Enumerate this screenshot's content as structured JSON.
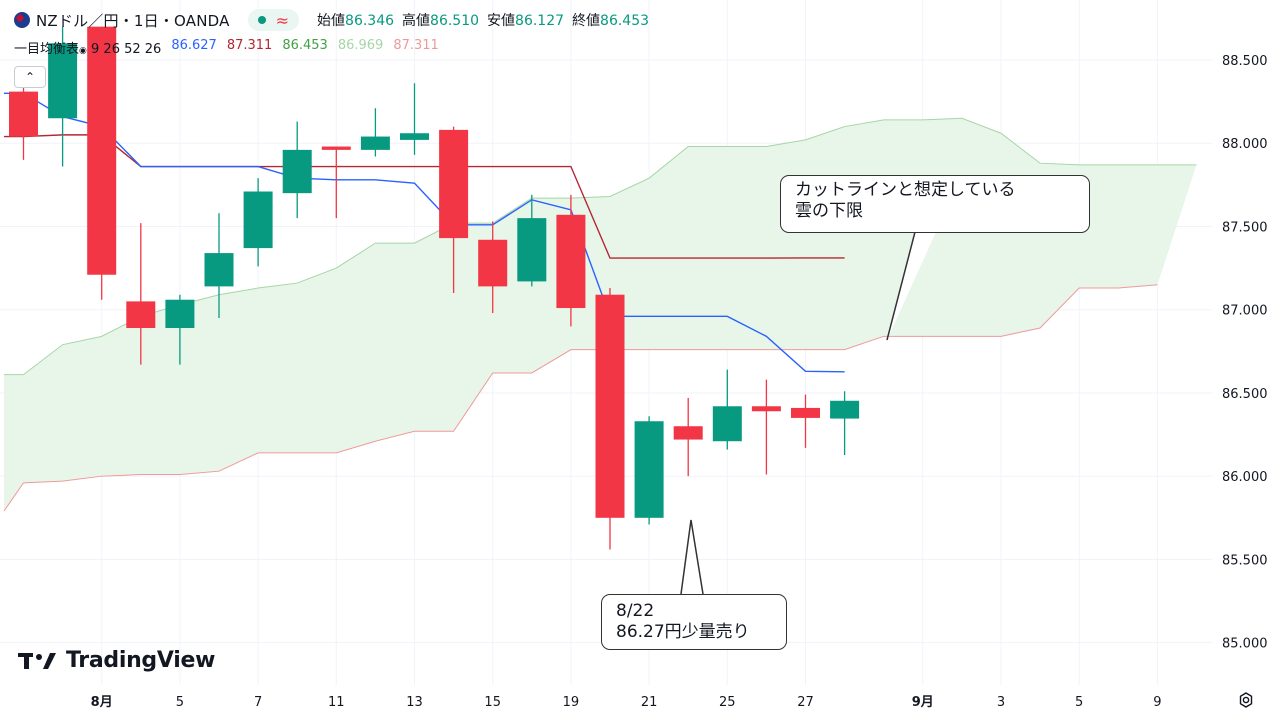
{
  "header": {
    "symbol": "NZドル／円・1日・OANDA",
    "open_label": "始値",
    "open_value": "86.346",
    "high_label": "高値",
    "high_value": "86.510",
    "low_label": "安値",
    "low_value": "86.127",
    "close_label": "終値",
    "close_value": "86.453",
    "wave_glyph": "≈"
  },
  "indicator": {
    "name": "一目均衡表",
    "params": "9 26 52 26",
    "values": [
      {
        "text": "86.627",
        "color": "#2962ff"
      },
      {
        "text": "87.311",
        "color": "#b22833"
      },
      {
        "text": "86.453",
        "color": "#43a047"
      },
      {
        "text": "86.969",
        "color": "#a5d6a7"
      },
      {
        "text": "87.311",
        "color": "#ef9a9a"
      }
    ]
  },
  "collapse_glyph": "⌃",
  "logo_text": "TradingView",
  "callouts": {
    "cloud": "カットラインと想定している\n雲の下限",
    "trade": "8/22\n86.27円少量売り"
  },
  "colors": {
    "up": "#089981",
    "down": "#f23645",
    "tenkan": "#2962ff",
    "kijun": "#b22833",
    "span_a": "#a5d6a7",
    "span_b": "#ef9a9a",
    "cloud": "#e8f5e9"
  },
  "chart_data": {
    "type": "candlestick",
    "ylim": [
      84.95,
      88.68
    ],
    "y_ticks": [
      85.0,
      85.5,
      86.0,
      86.5,
      87.0,
      87.5,
      88.0,
      88.5
    ],
    "y_tick_labels": [
      "85.000",
      "85.500",
      "86.000",
      "86.500",
      "87.000",
      "87.500",
      "88.000",
      "88.500"
    ],
    "x_ticks": [
      {
        "label": "8月",
        "slot": 2,
        "bold": true
      },
      {
        "label": "5",
        "slot": 4
      },
      {
        "label": "7",
        "slot": 6
      },
      {
        "label": "11",
        "slot": 8
      },
      {
        "label": "13",
        "slot": 10
      },
      {
        "label": "15",
        "slot": 12
      },
      {
        "label": "19",
        "slot": 14
      },
      {
        "label": "21",
        "slot": 16
      },
      {
        "label": "25",
        "slot": 18
      },
      {
        "label": "27",
        "slot": 20
      },
      {
        "label": "9月",
        "slot": 23,
        "bold": true
      },
      {
        "label": "3",
        "slot": 25
      },
      {
        "label": "5",
        "slot": 27
      },
      {
        "label": "9",
        "slot": 29
      }
    ],
    "candles": [
      {
        "slot": 0,
        "o": 88.31,
        "h": 88.45,
        "l": 87.9,
        "c": 88.04
      },
      {
        "slot": 1,
        "o": 88.15,
        "h": 88.7,
        "l": 87.86,
        "c": 88.6
      },
      {
        "slot": 2,
        "o": 88.7,
        "h": 88.7,
        "l": 87.06,
        "c": 87.21
      },
      {
        "slot": 3,
        "o": 87.05,
        "h": 87.52,
        "l": 86.67,
        "c": 86.89
      },
      {
        "slot": 4,
        "o": 86.89,
        "h": 87.09,
        "l": 86.67,
        "c": 87.06
      },
      {
        "slot": 5,
        "o": 87.14,
        "h": 87.58,
        "l": 86.95,
        "c": 87.34
      },
      {
        "slot": 6,
        "o": 87.37,
        "h": 87.79,
        "l": 87.26,
        "c": 87.71
      },
      {
        "slot": 7,
        "o": 87.7,
        "h": 88.13,
        "l": 87.55,
        "c": 87.96
      },
      {
        "slot": 8,
        "o": 87.98,
        "h": 87.98,
        "l": 87.55,
        "c": 87.96
      },
      {
        "slot": 9,
        "o": 87.96,
        "h": 88.21,
        "l": 87.92,
        "c": 88.04
      },
      {
        "slot": 10,
        "o": 88.02,
        "h": 88.36,
        "l": 87.93,
        "c": 88.06
      },
      {
        "slot": 11,
        "o": 88.08,
        "h": 88.1,
        "l": 87.1,
        "c": 87.43
      },
      {
        "slot": 12,
        "o": 87.42,
        "h": 87.53,
        "l": 86.98,
        "c": 87.14
      },
      {
        "slot": 13,
        "o": 87.17,
        "h": 87.69,
        "l": 87.14,
        "c": 87.55
      },
      {
        "slot": 14,
        "o": 87.57,
        "h": 87.69,
        "l": 86.9,
        "c": 87.01
      },
      {
        "slot": 15,
        "o": 87.09,
        "h": 87.13,
        "l": 85.56,
        "c": 85.75
      },
      {
        "slot": 16,
        "o": 85.75,
        "h": 86.36,
        "l": 85.71,
        "c": 86.33
      },
      {
        "slot": 17,
        "o": 86.3,
        "h": 86.47,
        "l": 86.0,
        "c": 86.22
      },
      {
        "slot": 18,
        "o": 86.21,
        "h": 86.64,
        "l": 86.16,
        "c": 86.42
      },
      {
        "slot": 19,
        "o": 86.42,
        "h": 86.58,
        "l": 86.01,
        "c": 86.39
      },
      {
        "slot": 20,
        "o": 86.41,
        "h": 86.49,
        "l": 86.17,
        "c": 86.35
      },
      {
        "slot": 21,
        "o": 86.346,
        "h": 86.51,
        "l": 86.127,
        "c": 86.453
      }
    ],
    "tenkan": [
      [
        -0.5,
        88.3
      ],
      [
        0,
        88.3
      ],
      [
        1,
        88.16
      ],
      [
        2,
        88.1
      ],
      [
        3,
        87.86
      ],
      [
        4,
        87.86
      ],
      [
        5,
        87.86
      ],
      [
        6,
        87.86
      ],
      [
        7,
        87.79
      ],
      [
        8,
        87.78
      ],
      [
        9,
        87.78
      ],
      [
        10,
        87.76
      ],
      [
        11,
        87.51
      ],
      [
        12,
        87.51
      ],
      [
        13,
        87.66
      ],
      [
        14,
        87.6
      ],
      [
        15,
        86.96
      ],
      [
        16,
        86.96
      ],
      [
        17,
        86.96
      ],
      [
        18,
        86.96
      ],
      [
        19,
        86.84
      ],
      [
        20,
        86.63
      ],
      [
        21,
        86.627
      ]
    ],
    "kijun": [
      [
        -0.5,
        88.04
      ],
      [
        0,
        88.04
      ],
      [
        1,
        88.05
      ],
      [
        2,
        88.05
      ],
      [
        3,
        87.86
      ],
      [
        4,
        87.86
      ],
      [
        5,
        87.86
      ],
      [
        6,
        87.86
      ],
      [
        7,
        87.86
      ],
      [
        8,
        87.86
      ],
      [
        9,
        87.86
      ],
      [
        10,
        87.86
      ],
      [
        11,
        87.86
      ],
      [
        12,
        87.86
      ],
      [
        13,
        87.86
      ],
      [
        14,
        87.86
      ],
      [
        15,
        87.31
      ],
      [
        16,
        87.31
      ],
      [
        17,
        87.31
      ],
      [
        18,
        87.31
      ],
      [
        19,
        87.31
      ],
      [
        20,
        87.311
      ],
      [
        21,
        87.311
      ]
    ],
    "span_a": [
      [
        -0.5,
        86.61
      ],
      [
        0,
        86.61
      ],
      [
        1,
        86.79
      ],
      [
        2,
        86.84
      ],
      [
        3,
        86.96
      ],
      [
        4,
        87.03
      ],
      [
        5,
        87.09
      ],
      [
        6,
        87.13
      ],
      [
        7,
        87.16
      ],
      [
        8,
        87.25
      ],
      [
        9,
        87.4
      ],
      [
        10,
        87.4
      ],
      [
        11,
        87.52
      ],
      [
        12,
        87.52
      ],
      [
        13,
        87.67
      ],
      [
        14,
        87.67
      ],
      [
        15,
        87.68
      ],
      [
        16,
        87.79
      ],
      [
        17,
        87.98
      ],
      [
        18,
        87.98
      ],
      [
        19,
        87.98
      ],
      [
        20,
        88.02
      ],
      [
        21,
        88.1
      ],
      [
        22,
        88.14
      ],
      [
        23,
        88.14
      ],
      [
        24,
        88.15
      ],
      [
        25,
        88.06
      ],
      [
        26,
        87.88
      ],
      [
        27,
        87.87
      ],
      [
        28,
        87.87
      ],
      [
        29,
        87.87
      ],
      [
        30,
        87.87
      ]
    ],
    "span_b": [
      [
        -0.5,
        85.79
      ],
      [
        0,
        85.96
      ],
      [
        1,
        85.97
      ],
      [
        2,
        86.0
      ],
      [
        3,
        86.01
      ],
      [
        4,
        86.01
      ],
      [
        5,
        86.03
      ],
      [
        6,
        86.14
      ],
      [
        7,
        86.14
      ],
      [
        8,
        86.14
      ],
      [
        9,
        86.21
      ],
      [
        10,
        86.27
      ],
      [
        11,
        86.27
      ],
      [
        12,
        86.62
      ],
      [
        13,
        86.62
      ],
      [
        14,
        86.76
      ],
      [
        15,
        86.76
      ],
      [
        16,
        86.76
      ],
      [
        17,
        86.76
      ],
      [
        18,
        86.76
      ],
      [
        19,
        86.76
      ],
      [
        20,
        86.76
      ],
      [
        21,
        86.76
      ],
      [
        22,
        86.84
      ],
      [
        23,
        86.84
      ],
      [
        24,
        86.84
      ],
      [
        25,
        86.84
      ],
      [
        26,
        86.89
      ],
      [
        27,
        87.13
      ],
      [
        28,
        87.13
      ],
      [
        29,
        87.15
      ]
    ]
  }
}
